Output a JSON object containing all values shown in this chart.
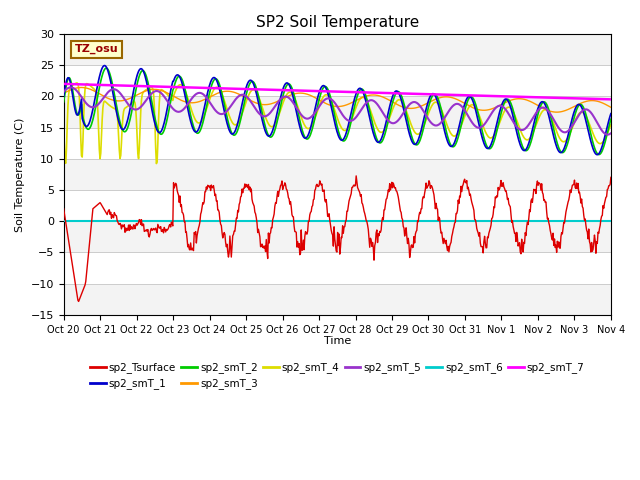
{
  "title": "SP2 Soil Temperature",
  "ylabel": "Soil Temperature (C)",
  "xlabel": "Time",
  "annotation": "TZ_osu",
  "xtick_labels": [
    "Oct 20",
    "Oct 21",
    "Oct 22",
    "Oct 23",
    "Oct 24",
    "Oct 25",
    "Oct 26",
    "Oct 27",
    "Oct 28",
    "Oct 29",
    "Oct 30",
    "Oct 31",
    "Nov 1",
    "Nov 2",
    "Nov 3",
    "Nov 4"
  ],
  "ylim": [
    -15,
    30
  ],
  "xlim": [
    0,
    15
  ],
  "yticks": [
    -15,
    -10,
    -5,
    0,
    5,
    10,
    15,
    20,
    25,
    30
  ],
  "background_color": "#ffffff",
  "plot_bg_color": "#ffffff",
  "series_colors": {
    "sp2_Tsurface": "#dd0000",
    "sp2_smT_1": "#0000cc",
    "sp2_smT_2": "#00cc00",
    "sp2_smT_3": "#ff9900",
    "sp2_smT_4": "#dddd00",
    "sp2_smT_5": "#9933cc",
    "sp2_smT_6": "#00cccc",
    "sp2_smT_7": "#ff00ff"
  },
  "figsize": [
    6.4,
    4.8
  ],
  "dpi": 100
}
